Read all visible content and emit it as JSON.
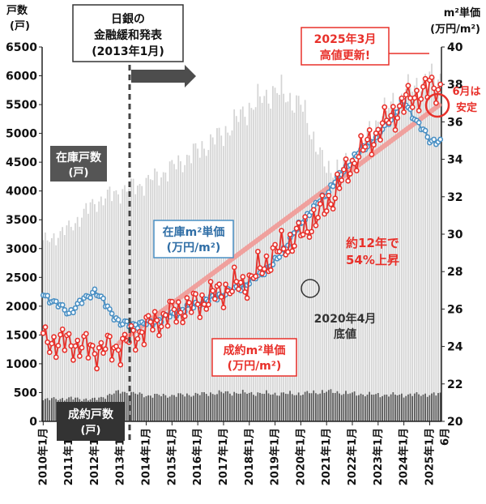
{
  "chart_data": {
    "type": "bar",
    "left_axis": {
      "title_line1": "戸数",
      "title_line2": "(戸)",
      "ticks": [
        "0",
        "500",
        "1000",
        "1500",
        "2000",
        "2500",
        "3000",
        "3500",
        "4000",
        "4500",
        "5000",
        "5500",
        "6000",
        "6500"
      ],
      "range": [
        0,
        6500
      ]
    },
    "right_axis": {
      "title_line1": "m²単価",
      "title_line2": "(万円/m²)",
      "ticks": [
        "20",
        "22",
        "24",
        "26",
        "28",
        "30",
        "32",
        "34",
        "36",
        "38",
        "40"
      ],
      "range": [
        20,
        40
      ],
      "unit": "万円/m²"
    },
    "x_ticks": [
      "2010年1月",
      "2011年1月",
      "2012年1月",
      "2013年1月",
      "2014年1月",
      "2015年1月",
      "2016年1月",
      "2017年1月",
      "2018年1月",
      "2019年1月",
      "2020年1月",
      "2021年1月",
      "2022年1月",
      "2023年1月",
      "2024年1月",
      "2025年1月"
    ],
    "x_end_label": "6月",
    "series": [
      {
        "name": "在庫戸数",
        "unit": "戸",
        "kind": "bar",
        "color": "#d4d4d4",
        "yearly_values": [
          3100,
          3350,
          3800,
          4000,
          4150,
          4400,
          4700,
          5000,
          5450,
          5750,
          5500,
          4350,
          4500,
          5250,
          5700,
          5950
        ]
      },
      {
        "name": "成約戸数",
        "unit": "戸",
        "kind": "bar",
        "color": "#555555",
        "yearly_values": [
          380,
          400,
          380,
          520,
          450,
          450,
          470,
          500,
          490,
          480,
          480,
          520,
          480,
          460,
          460,
          470
        ]
      },
      {
        "name": "在庫m²単価",
        "unit": "万円/m²",
        "kind": "line",
        "color": "#4a90c4",
        "yearly_values": [
          26.8,
          25.8,
          27.0,
          25.2,
          25.2,
          25.7,
          26.3,
          26.8,
          27.4,
          28.5,
          30.6,
          32.2,
          34.0,
          35.3,
          37.1,
          35.0
        ]
      },
      {
        "name": "成約m²単価",
        "unit": "万円/m²",
        "kind": "line",
        "color": "#e8302a",
        "yearly_values": [
          24.3,
          24.2,
          23.8,
          24.0,
          25.0,
          25.8,
          26.3,
          27.0,
          27.5,
          29.0,
          30.0,
          31.5,
          33.8,
          35.5,
          37.0,
          37.8
        ]
      }
    ],
    "trend": {
      "from": 24.2,
      "to": 36.9,
      "color": "#f19a96"
    },
    "annotations": {
      "policy_box": [
        "日銀の",
        "金融緩和発表",
        "(2013年1月)"
      ],
      "inventory_title": [
        "在庫戸数",
        "(戸)"
      ],
      "contract_title": [
        "成約戸数",
        "(戸)"
      ],
      "inv_price_label": [
        "在庫m²単価",
        "(万円/m²)"
      ],
      "con_price_label": [
        "成約m²単価",
        "(万円/m²)"
      ],
      "high_box": [
        "2025年3月",
        "高値更新!"
      ],
      "stable_label": [
        "6月は",
        "安定"
      ],
      "bottom_label": [
        "2020年4月",
        "底値"
      ],
      "rise_label": [
        "約12年で",
        "54%上昇"
      ]
    }
  }
}
